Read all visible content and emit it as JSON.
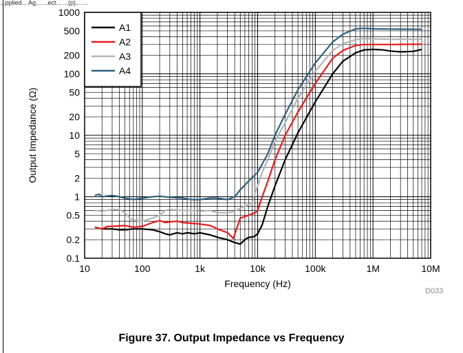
{
  "header": {
    "text": "...pplied... Ag... ...ect... ...(p)... ..."
  },
  "figure": {
    "caption": "Figure 37. Output Impedance vs Frequency",
    "code": "D033"
  },
  "colors": {
    "A1": "#000000",
    "A2": "#e8191c",
    "A3": "#b4b4b4",
    "A4": "#2c5f7f"
  },
  "chart_data": {
    "type": "line",
    "title": "",
    "xlabel": "Frequency (Hz)",
    "ylabel": "Output Impedance (Ω)",
    "xscale": "log",
    "yscale": "log",
    "xlim": [
      10,
      10000000
    ],
    "ylim": [
      0.1,
      1000
    ],
    "grid": true,
    "legend": "top-left",
    "x_ticks": [
      {
        "value": 10,
        "label": "10"
      },
      {
        "value": 100,
        "label": "100"
      },
      {
        "value": 1000,
        "label": "1k"
      },
      {
        "value": 10000,
        "label": "10k"
      },
      {
        "value": 100000,
        "label": "100k"
      },
      {
        "value": 1000000,
        "label": "1M"
      },
      {
        "value": 10000000,
        "label": "10M"
      }
    ],
    "y_ticks": [
      {
        "value": 0.1,
        "label": "0.1"
      },
      {
        "value": 0.2,
        "label": "0.2"
      },
      {
        "value": 0.5,
        "label": "0.5"
      },
      {
        "value": 1,
        "label": "1"
      },
      {
        "value": 2,
        "label": "2"
      },
      {
        "value": 5,
        "label": "5"
      },
      {
        "value": 10,
        "label": "10"
      },
      {
        "value": 20,
        "label": "20"
      },
      {
        "value": 50,
        "label": "50"
      },
      {
        "value": 100,
        "label": "100"
      },
      {
        "value": 200,
        "label": "200"
      },
      {
        "value": 500,
        "label": "500"
      },
      {
        "value": 1000,
        "label": "1000"
      }
    ],
    "series": [
      {
        "name": "A1",
        "color": "#000000",
        "points": [
          [
            15,
            0.32
          ],
          [
            20,
            0.3
          ],
          [
            30,
            0.3
          ],
          [
            40,
            0.29
          ],
          [
            50,
            0.29
          ],
          [
            70,
            0.3
          ],
          [
            100,
            0.3
          ],
          [
            150,
            0.29
          ],
          [
            200,
            0.27
          ],
          [
            250,
            0.25
          ],
          [
            300,
            0.24
          ],
          [
            400,
            0.26
          ],
          [
            500,
            0.25
          ],
          [
            600,
            0.26
          ],
          [
            800,
            0.25
          ],
          [
            1000,
            0.26
          ],
          [
            1500,
            0.24
          ],
          [
            2000,
            0.22
          ],
          [
            3000,
            0.2
          ],
          [
            4000,
            0.18
          ],
          [
            5000,
            0.17
          ],
          [
            6000,
            0.2
          ],
          [
            7000,
            0.22
          ],
          [
            8000,
            0.22
          ],
          [
            9000,
            0.23
          ],
          [
            10000,
            0.25
          ],
          [
            12000,
            0.35
          ],
          [
            15000,
            0.7
          ],
          [
            20000,
            1.5
          ],
          [
            30000,
            4
          ],
          [
            50000,
            11
          ],
          [
            100000,
            35
          ],
          [
            200000,
            100
          ],
          [
            300000,
            160
          ],
          [
            500000,
            220
          ],
          [
            700000,
            245
          ],
          [
            1000000,
            250
          ],
          [
            1500000,
            245
          ],
          [
            2000000,
            235
          ],
          [
            3000000,
            228
          ],
          [
            5000000,
            232
          ],
          [
            7000000,
            250
          ]
        ]
      },
      {
        "name": "A2",
        "color": "#e8191c",
        "points": [
          [
            15,
            0.32
          ],
          [
            20,
            0.3
          ],
          [
            25,
            0.33
          ],
          [
            30,
            0.33
          ],
          [
            50,
            0.34
          ],
          [
            70,
            0.32
          ],
          [
            100,
            0.33
          ],
          [
            150,
            0.38
          ],
          [
            200,
            0.41
          ],
          [
            250,
            0.38
          ],
          [
            300,
            0.39
          ],
          [
            400,
            0.4
          ],
          [
            500,
            0.38
          ],
          [
            700,
            0.37
          ],
          [
            1000,
            0.36
          ],
          [
            1500,
            0.34
          ],
          [
            2000,
            0.3
          ],
          [
            3000,
            0.26
          ],
          [
            3800,
            0.21
          ],
          [
            4200,
            0.28
          ],
          [
            5000,
            0.45
          ],
          [
            7000,
            0.5
          ],
          [
            9000,
            0.55
          ],
          [
            10000,
            0.6
          ],
          [
            12000,
            1.0
          ],
          [
            15000,
            1.8
          ],
          [
            20000,
            4
          ],
          [
            30000,
            10
          ],
          [
            50000,
            24
          ],
          [
            100000,
            70
          ],
          [
            200000,
            180
          ],
          [
            300000,
            240
          ],
          [
            500000,
            290
          ],
          [
            700000,
            300
          ],
          [
            1000000,
            300
          ],
          [
            2000000,
            300
          ],
          [
            4000000,
            302
          ],
          [
            7000000,
            303
          ]
        ]
      },
      {
        "name": "A3",
        "color": "#b4b4b4",
        "points": [
          [
            15,
            0.6
          ],
          [
            20,
            0.58
          ],
          [
            30,
            0.62
          ],
          [
            40,
            0.62
          ],
          [
            50,
            0.55
          ],
          [
            60,
            0.45
          ],
          [
            70,
            0.42
          ],
          [
            100,
            0.4
          ],
          [
            150,
            0.45
          ],
          [
            200,
            0.5
          ],
          [
            250,
            0.6
          ],
          [
            300,
            0.62
          ],
          [
            500,
            0.6
          ],
          [
            700,
            0.6
          ],
          [
            1000,
            0.58
          ],
          [
            1500,
            0.6
          ],
          [
            2000,
            0.55
          ],
          [
            3000,
            0.55
          ],
          [
            4000,
            0.58
          ],
          [
            5000,
            0.65
          ],
          [
            7000,
            0.75
          ],
          [
            8000,
            0.8
          ],
          [
            10000,
            1.5
          ],
          [
            12000,
            2.5
          ],
          [
            15000,
            4
          ],
          [
            20000,
            8
          ],
          [
            30000,
            16
          ],
          [
            50000,
            40
          ],
          [
            100000,
            110
          ],
          [
            200000,
            240
          ],
          [
            300000,
            310
          ],
          [
            500000,
            360
          ],
          [
            700000,
            375
          ],
          [
            1000000,
            370
          ],
          [
            2000000,
            365
          ],
          [
            7000000,
            366
          ]
        ]
      },
      {
        "name": "A4",
        "color": "#2c5f7f",
        "points": [
          [
            15,
            1.05
          ],
          [
            18,
            1.1
          ],
          [
            20,
            1.0
          ],
          [
            30,
            1.05
          ],
          [
            40,
            1.0
          ],
          [
            50,
            0.95
          ],
          [
            70,
            0.9
          ],
          [
            100,
            0.95
          ],
          [
            150,
            1.0
          ],
          [
            200,
            1.02
          ],
          [
            300,
            0.98
          ],
          [
            500,
            0.95
          ],
          [
            700,
            0.9
          ],
          [
            1000,
            0.9
          ],
          [
            1500,
            0.95
          ],
          [
            2000,
            0.95
          ],
          [
            3000,
            0.9
          ],
          [
            4000,
            1.0
          ],
          [
            5000,
            1.3
          ],
          [
            7000,
            1.8
          ],
          [
            10000,
            2.5
          ],
          [
            15000,
            5
          ],
          [
            20000,
            10
          ],
          [
            30000,
            22
          ],
          [
            50000,
            55
          ],
          [
            100000,
            150
          ],
          [
            200000,
            330
          ],
          [
            300000,
            440
          ],
          [
            500000,
            540
          ],
          [
            700000,
            550
          ],
          [
            1000000,
            540
          ],
          [
            2000000,
            535
          ],
          [
            4000000,
            532
          ],
          [
            7000000,
            530
          ]
        ]
      }
    ]
  }
}
